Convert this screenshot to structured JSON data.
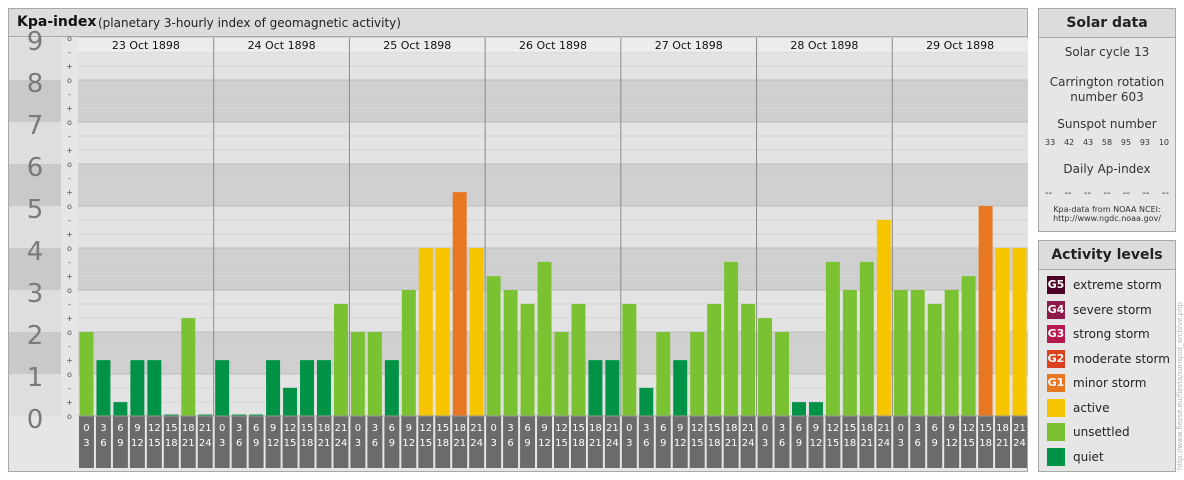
{
  "header": {
    "title": "Kpa-index",
    "subtitle": "(planetary 3-hourly index of geomagnetic activity)"
  },
  "chart_data": {
    "type": "bar",
    "title": "Kpa-index",
    "subtitle": "(planetary 3-hourly index of geomagnetic activity)",
    "ylim": [
      0,
      9
    ],
    "y_ticks": [
      "0",
      "1",
      "2",
      "3",
      "4",
      "5",
      "6",
      "7",
      "8",
      "9"
    ],
    "minor_ticks": [
      "o",
      "+",
      "-"
    ],
    "days": [
      "23 Oct 1898",
      "24 Oct 1898",
      "25 Oct 1898",
      "26 Oct 1898",
      "27 Oct 1898",
      "28 Oct 1898",
      "29 Oct 1898"
    ],
    "interval_starts": [
      "0",
      "3",
      "6",
      "9",
      "12",
      "15",
      "18",
      "21"
    ],
    "interval_ends": [
      "3",
      "6",
      "9",
      "12",
      "15",
      "18",
      "21",
      "24"
    ],
    "values": [
      [
        2.0,
        1.33,
        0.33,
        1.33,
        1.33,
        0.0,
        2.33,
        0.0
      ],
      [
        1.33,
        0.0,
        0.0,
        1.33,
        0.67,
        1.33,
        1.33,
        2.67
      ],
      [
        2.0,
        2.0,
        1.33,
        3.0,
        4.0,
        4.0,
        5.33,
        4.0
      ],
      [
        3.33,
        3.0,
        2.67,
        3.67,
        2.0,
        2.67,
        1.33,
        1.33
      ],
      [
        2.67,
        0.67,
        2.0,
        1.33,
        2.0,
        2.67,
        3.67,
        2.67
      ],
      [
        2.33,
        2.0,
        0.33,
        0.33,
        3.67,
        3.0,
        3.67,
        4.67
      ],
      [
        3.0,
        3.0,
        2.67,
        3.0,
        3.33,
        5.0,
        4.0,
        4.0
      ]
    ],
    "level_colors": {
      "quiet": "#009245",
      "unsettled": "#7ac231",
      "active": "#f7c400",
      "minor_storm": "#e87722"
    },
    "grid": true
  },
  "solar": {
    "title": "Solar data",
    "cycle": "Solar cycle 13",
    "carrington_1": "Carrington rotation",
    "carrington_2": "number 603",
    "sunspot_title": "Sunspot number",
    "sunspots": [
      "33",
      "42",
      "43",
      "58",
      "95",
      "93",
      "10"
    ],
    "ap_title": "Daily Ap-index",
    "ap_values": [
      "--",
      "--",
      "--",
      "--",
      "--",
      "--",
      "--"
    ],
    "source_1": "Kpa-data from NOAA NCEI:",
    "source_2": "http://www.ngdc.noaa.gov/"
  },
  "levels": {
    "title": "Activity levels",
    "items": [
      {
        "badge": "G5",
        "label": "extreme storm",
        "color": "#4d0026"
      },
      {
        "badge": "G4",
        "label": "severe storm",
        "color": "#8c1a4b"
      },
      {
        "badge": "G3",
        "label": "strong storm",
        "color": "#b5174f"
      },
      {
        "badge": "G2",
        "label": "moderate storm",
        "color": "#d9421c"
      },
      {
        "badge": "G1",
        "label": "minor storm",
        "color": "#e87722"
      },
      {
        "badge": "",
        "label": "active",
        "color": "#f7c400"
      },
      {
        "badge": "",
        "label": "unsettled",
        "color": "#7ac231"
      },
      {
        "badge": "",
        "label": "quiet",
        "color": "#009245"
      }
    ]
  },
  "credit": "http://www.fiesse.eu/fiesta/sunspot_archive.php"
}
